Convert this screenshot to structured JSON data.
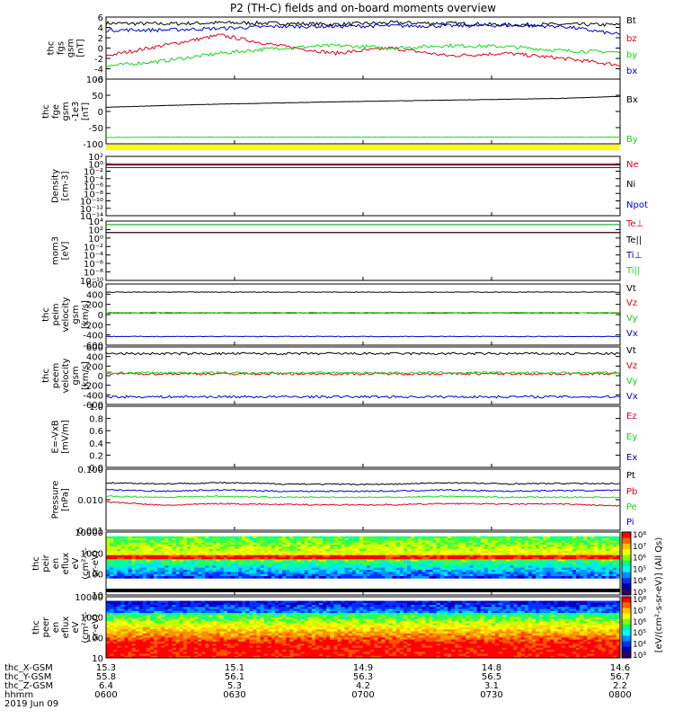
{
  "title": "P2 (TH-C) fields and on-board moments overview",
  "colors": {
    "black": "#000000",
    "red": "#e0001b",
    "green": "#17d817",
    "blue": "#0000c8",
    "yellow": "#ffff00"
  },
  "chart_data": [
    {
      "type": "line",
      "panel": "fgs",
      "ylabel": [
        "thc",
        "fgs",
        "gsm",
        "[nT]"
      ],
      "yticks": [
        "6",
        "4",
        "2",
        "0",
        "-2",
        "-4",
        "-6"
      ],
      "ylim": [
        -6,
        6
      ],
      "legend": [
        {
          "name": "Bt",
          "color": "black"
        },
        {
          "name": "bz",
          "color": "red"
        },
        {
          "name": "by",
          "color": "green"
        },
        {
          "name": "bx",
          "color": "blue"
        }
      ],
      "series": [
        {
          "name": "Bt",
          "values": [
            4.8,
            4.7,
            4.9,
            4.8,
            4.6,
            4.9,
            4.8,
            4.5,
            4.6,
            4.5
          ]
        },
        {
          "name": "bz",
          "values": [
            -1.5,
            0.5,
            2.5,
            0.5,
            -1,
            0,
            -1.5,
            -1,
            -2,
            -3.3
          ]
        },
        {
          "name": "by",
          "values": [
            -3.5,
            -2.5,
            -1,
            0,
            0.5,
            0,
            0.5,
            0.3,
            -0.5,
            -0.8
          ]
        },
        {
          "name": "bx",
          "values": [
            3.5,
            3.5,
            3.8,
            4.2,
            4.2,
            4.3,
            4.3,
            4.4,
            4.2,
            2.6
          ]
        }
      ]
    },
    {
      "type": "line",
      "panel": "fge",
      "ylabel": [
        "thc",
        "fge",
        "gsm",
        "-1e3",
        "[nT]"
      ],
      "yticks": [
        "100",
        "50",
        "0",
        "-50",
        "-100"
      ],
      "ylim": [
        -125,
        100
      ],
      "legend": [
        {
          "name": "Bx",
          "color": "black"
        },
        {
          "name": "By",
          "color": "green"
        }
      ],
      "series": [
        {
          "name": "Bx",
          "values": [
            2,
            8,
            13,
            17,
            21,
            24,
            27,
            30,
            33,
            40
          ]
        },
        {
          "name": "By",
          "values": [
            -103,
            -102,
            -102,
            -102,
            -102,
            -102,
            -102,
            -102,
            -102,
            -102
          ]
        }
      ]
    },
    {
      "type": "line",
      "panel": "density",
      "ylabel": [
        "Density",
        "[cm-3]"
      ],
      "yticks": [
        "10²",
        "10⁰",
        "10⁻²",
        "10⁻⁴",
        "10⁻⁶",
        "10⁻⁸",
        "10⁻¹⁰",
        "10⁻¹²",
        "10⁻¹⁴"
      ],
      "ylim": [
        "1e-14",
        "1e2"
      ],
      "scale": "log",
      "legend": [
        {
          "name": "Ne",
          "color": "red"
        },
        {
          "name": "Ni",
          "color": "black"
        },
        {
          "name": "Npot",
          "color": "blue"
        }
      ],
      "series": [
        {
          "name": "Ne",
          "values": [
            1,
            1,
            1,
            1,
            1,
            1,
            1,
            1,
            1,
            1
          ]
        },
        {
          "name": "Ni",
          "values": [
            0.5,
            0.5,
            0.5,
            0.5,
            0.5,
            0.5,
            0.5,
            0.5,
            0.5,
            0.5
          ]
        },
        {
          "name": "Npot",
          "values": [
            0.1,
            0.1,
            0.1,
            0.1,
            0.1,
            0.1,
            0.1,
            0.1,
            0.1,
            0.1
          ]
        }
      ]
    },
    {
      "type": "line",
      "panel": "temperature",
      "ylabel": [
        "mom3",
        "[eV]"
      ],
      "yticks": [
        "10⁴",
        "10²",
        "10⁰",
        "10⁻²",
        "10⁻⁴",
        "10⁻⁶",
        "10⁻⁸",
        "10⁻¹⁰"
      ],
      "ylim": [
        "1e-10",
        "1e4"
      ],
      "scale": "log",
      "legend": [
        {
          "name": "Te⊥",
          "color": "red"
        },
        {
          "name": "Te||",
          "color": "black"
        },
        {
          "name": "Ti⊥",
          "color": "blue"
        },
        {
          "name": "Ti||",
          "color": "green"
        }
      ],
      "series": [
        {
          "name": "Te⊥",
          "values": [
            20,
            20,
            20,
            20,
            20,
            20,
            20,
            20,
            20,
            20
          ]
        },
        {
          "name": "Te||",
          "values": [
            20,
            20,
            20,
            20,
            20,
            20,
            20,
            20,
            20,
            20
          ]
        },
        {
          "name": "Ti⊥",
          "values": [
            1500,
            1500,
            1500,
            1500,
            1500,
            1500,
            1500,
            1500,
            1500,
            1500
          ]
        },
        {
          "name": "Ti||",
          "values": [
            1500,
            1500,
            1500,
            1500,
            1500,
            1500,
            1500,
            1500,
            1500,
            1500
          ]
        }
      ]
    },
    {
      "type": "line",
      "panel": "peim",
      "ylabel": [
        "thc",
        "peim",
        "velocity",
        "gsm",
        "[km/s]"
      ],
      "yticks": [
        "600",
        "400",
        "200",
        "0",
        "-200",
        "-400",
        "-600"
      ],
      "ylim": [
        -600,
        600
      ],
      "legend": [
        {
          "name": "Vt",
          "color": "black"
        },
        {
          "name": "Vz",
          "color": "red"
        },
        {
          "name": "Vy",
          "color": "green"
        },
        {
          "name": "Vx",
          "color": "blue"
        }
      ],
      "series": [
        {
          "name": "Vt",
          "values": [
            440,
            440,
            440,
            440,
            440,
            440,
            440,
            440,
            440,
            440
          ]
        },
        {
          "name": "Vz",
          "values": [
            30,
            30,
            30,
            30,
            30,
            30,
            30,
            30,
            30,
            30
          ]
        },
        {
          "name": "Vy",
          "values": [
            40,
            40,
            40,
            40,
            40,
            40,
            40,
            40,
            40,
            40
          ]
        },
        {
          "name": "Vx",
          "values": [
            -430,
            -430,
            -430,
            -430,
            -430,
            -430,
            -430,
            -430,
            -430,
            -430
          ]
        }
      ]
    },
    {
      "type": "line",
      "panel": "peem",
      "ylabel": [
        "thc",
        "peem",
        "velocity",
        "gsm",
        "[km/s]"
      ],
      "yticks": [
        "600",
        "400",
        "200",
        "0",
        "-200",
        "-400",
        "-600"
      ],
      "ylim": [
        -600,
        600
      ],
      "legend": [
        {
          "name": "Vt",
          "color": "black"
        },
        {
          "name": "Vz",
          "color": "red"
        },
        {
          "name": "Vy",
          "color": "green"
        },
        {
          "name": "Vx",
          "color": "blue"
        }
      ],
      "series": [
        {
          "name": "Vt",
          "values": [
            460,
            460,
            460,
            460,
            460,
            460,
            460,
            460,
            460,
            460
          ]
        },
        {
          "name": "Vz",
          "values": [
            40,
            40,
            40,
            40,
            40,
            40,
            40,
            40,
            40,
            40
          ]
        },
        {
          "name": "Vy",
          "values": [
            60,
            60,
            60,
            60,
            60,
            60,
            60,
            60,
            60,
            60
          ]
        },
        {
          "name": "Vx",
          "values": [
            -440,
            -440,
            -440,
            -440,
            -440,
            -440,
            -440,
            -440,
            -440,
            -440
          ]
        }
      ]
    },
    {
      "type": "line",
      "panel": "efield",
      "ylabel": [
        "E=-VxB",
        "[mV/m]"
      ],
      "yticks": [
        "1.0",
        "0.8",
        "0.6",
        "0.4",
        "0.2",
        "0.0"
      ],
      "ylim": [
        0,
        1
      ],
      "legend": [
        {
          "name": "Ez",
          "color": "red"
        },
        {
          "name": "Ey",
          "color": "green"
        },
        {
          "name": "Ex",
          "color": "blue"
        }
      ],
      "series": []
    },
    {
      "type": "line",
      "panel": "pressure",
      "ylabel": [
        "Pressure",
        "[nPa]"
      ],
      "yticks": [
        "0.100",
        "0.010",
        "0.001"
      ],
      "ylim": [
        0.001,
        0.1
      ],
      "scale": "log",
      "legend": [
        {
          "name": "Pt",
          "color": "black"
        },
        {
          "name": "Pb",
          "color": "red"
        },
        {
          "name": "Pe",
          "color": "green"
        },
        {
          "name": "Pi",
          "color": "blue"
        }
      ],
      "series": [
        {
          "name": "Pt",
          "values": [
            0.036,
            0.033,
            0.036,
            0.033,
            0.032,
            0.032,
            0.036,
            0.033,
            0.034,
            0.034
          ]
        },
        {
          "name": "Pi",
          "values": [
            0.021,
            0.019,
            0.021,
            0.019,
            0.019,
            0.019,
            0.021,
            0.019,
            0.02,
            0.02
          ]
        },
        {
          "name": "Pe",
          "values": [
            0.013,
            0.012,
            0.013,
            0.012,
            0.012,
            0.012,
            0.013,
            0.012,
            0.012,
            0.012
          ]
        },
        {
          "name": "Pb",
          "values": [
            0.0085,
            0.0065,
            0.0075,
            0.007,
            0.0068,
            0.0068,
            0.0075,
            0.0072,
            0.0072,
            0.0062
          ]
        }
      ]
    },
    {
      "type": "heatmap",
      "panel": "peir",
      "ylabel": [
        "thc",
        "peir",
        "en",
        "eflux",
        "eV",
        "(cm²-s-",
        "sr-eV)"
      ],
      "yticks": [
        "10000",
        "1000",
        "100",
        "10"
      ],
      "ylim": [
        5,
        30000
      ],
      "scale": "log"
    },
    {
      "type": "heatmap",
      "panel": "peer",
      "ylabel": [
        "thc",
        "peer",
        "en",
        "eflux",
        "eV",
        "(cm²-s-",
        "sr-eV)"
      ],
      "yticks": [
        "10000",
        "1000",
        "100",
        "10"
      ],
      "ylim": [
        5,
        30000
      ],
      "scale": "log"
    }
  ],
  "colorbar": {
    "label": "[eV/(cm²-s-sr-eV)] (All Qs)",
    "top_ticks": [
      "10⁸",
      "10⁷",
      "10⁶",
      "10⁵",
      "10⁴",
      "10³"
    ],
    "bottom_ticks": [
      "10⁸",
      "10⁷",
      "10⁶",
      "10⁵",
      "10⁴",
      "10³"
    ]
  },
  "xaxis": {
    "rows": [
      {
        "label": "thc_X-GSM",
        "values": [
          "15.3",
          "15.1",
          "14.9",
          "14.8",
          "14.6"
        ]
      },
      {
        "label": "thc_Y-GSM",
        "values": [
          "55.8",
          "56.1",
          "56.3",
          "56.5",
          "56.7"
        ]
      },
      {
        "label": "thc_Z-GSM",
        "values": [
          "6.4",
          "5.3",
          "4.2",
          "3.1",
          "2.2"
        ]
      },
      {
        "label": "hhmm",
        "values": [
          "0600",
          "0630",
          "0700",
          "0730",
          "0800"
        ]
      }
    ],
    "date": "2019 Jun 09"
  }
}
